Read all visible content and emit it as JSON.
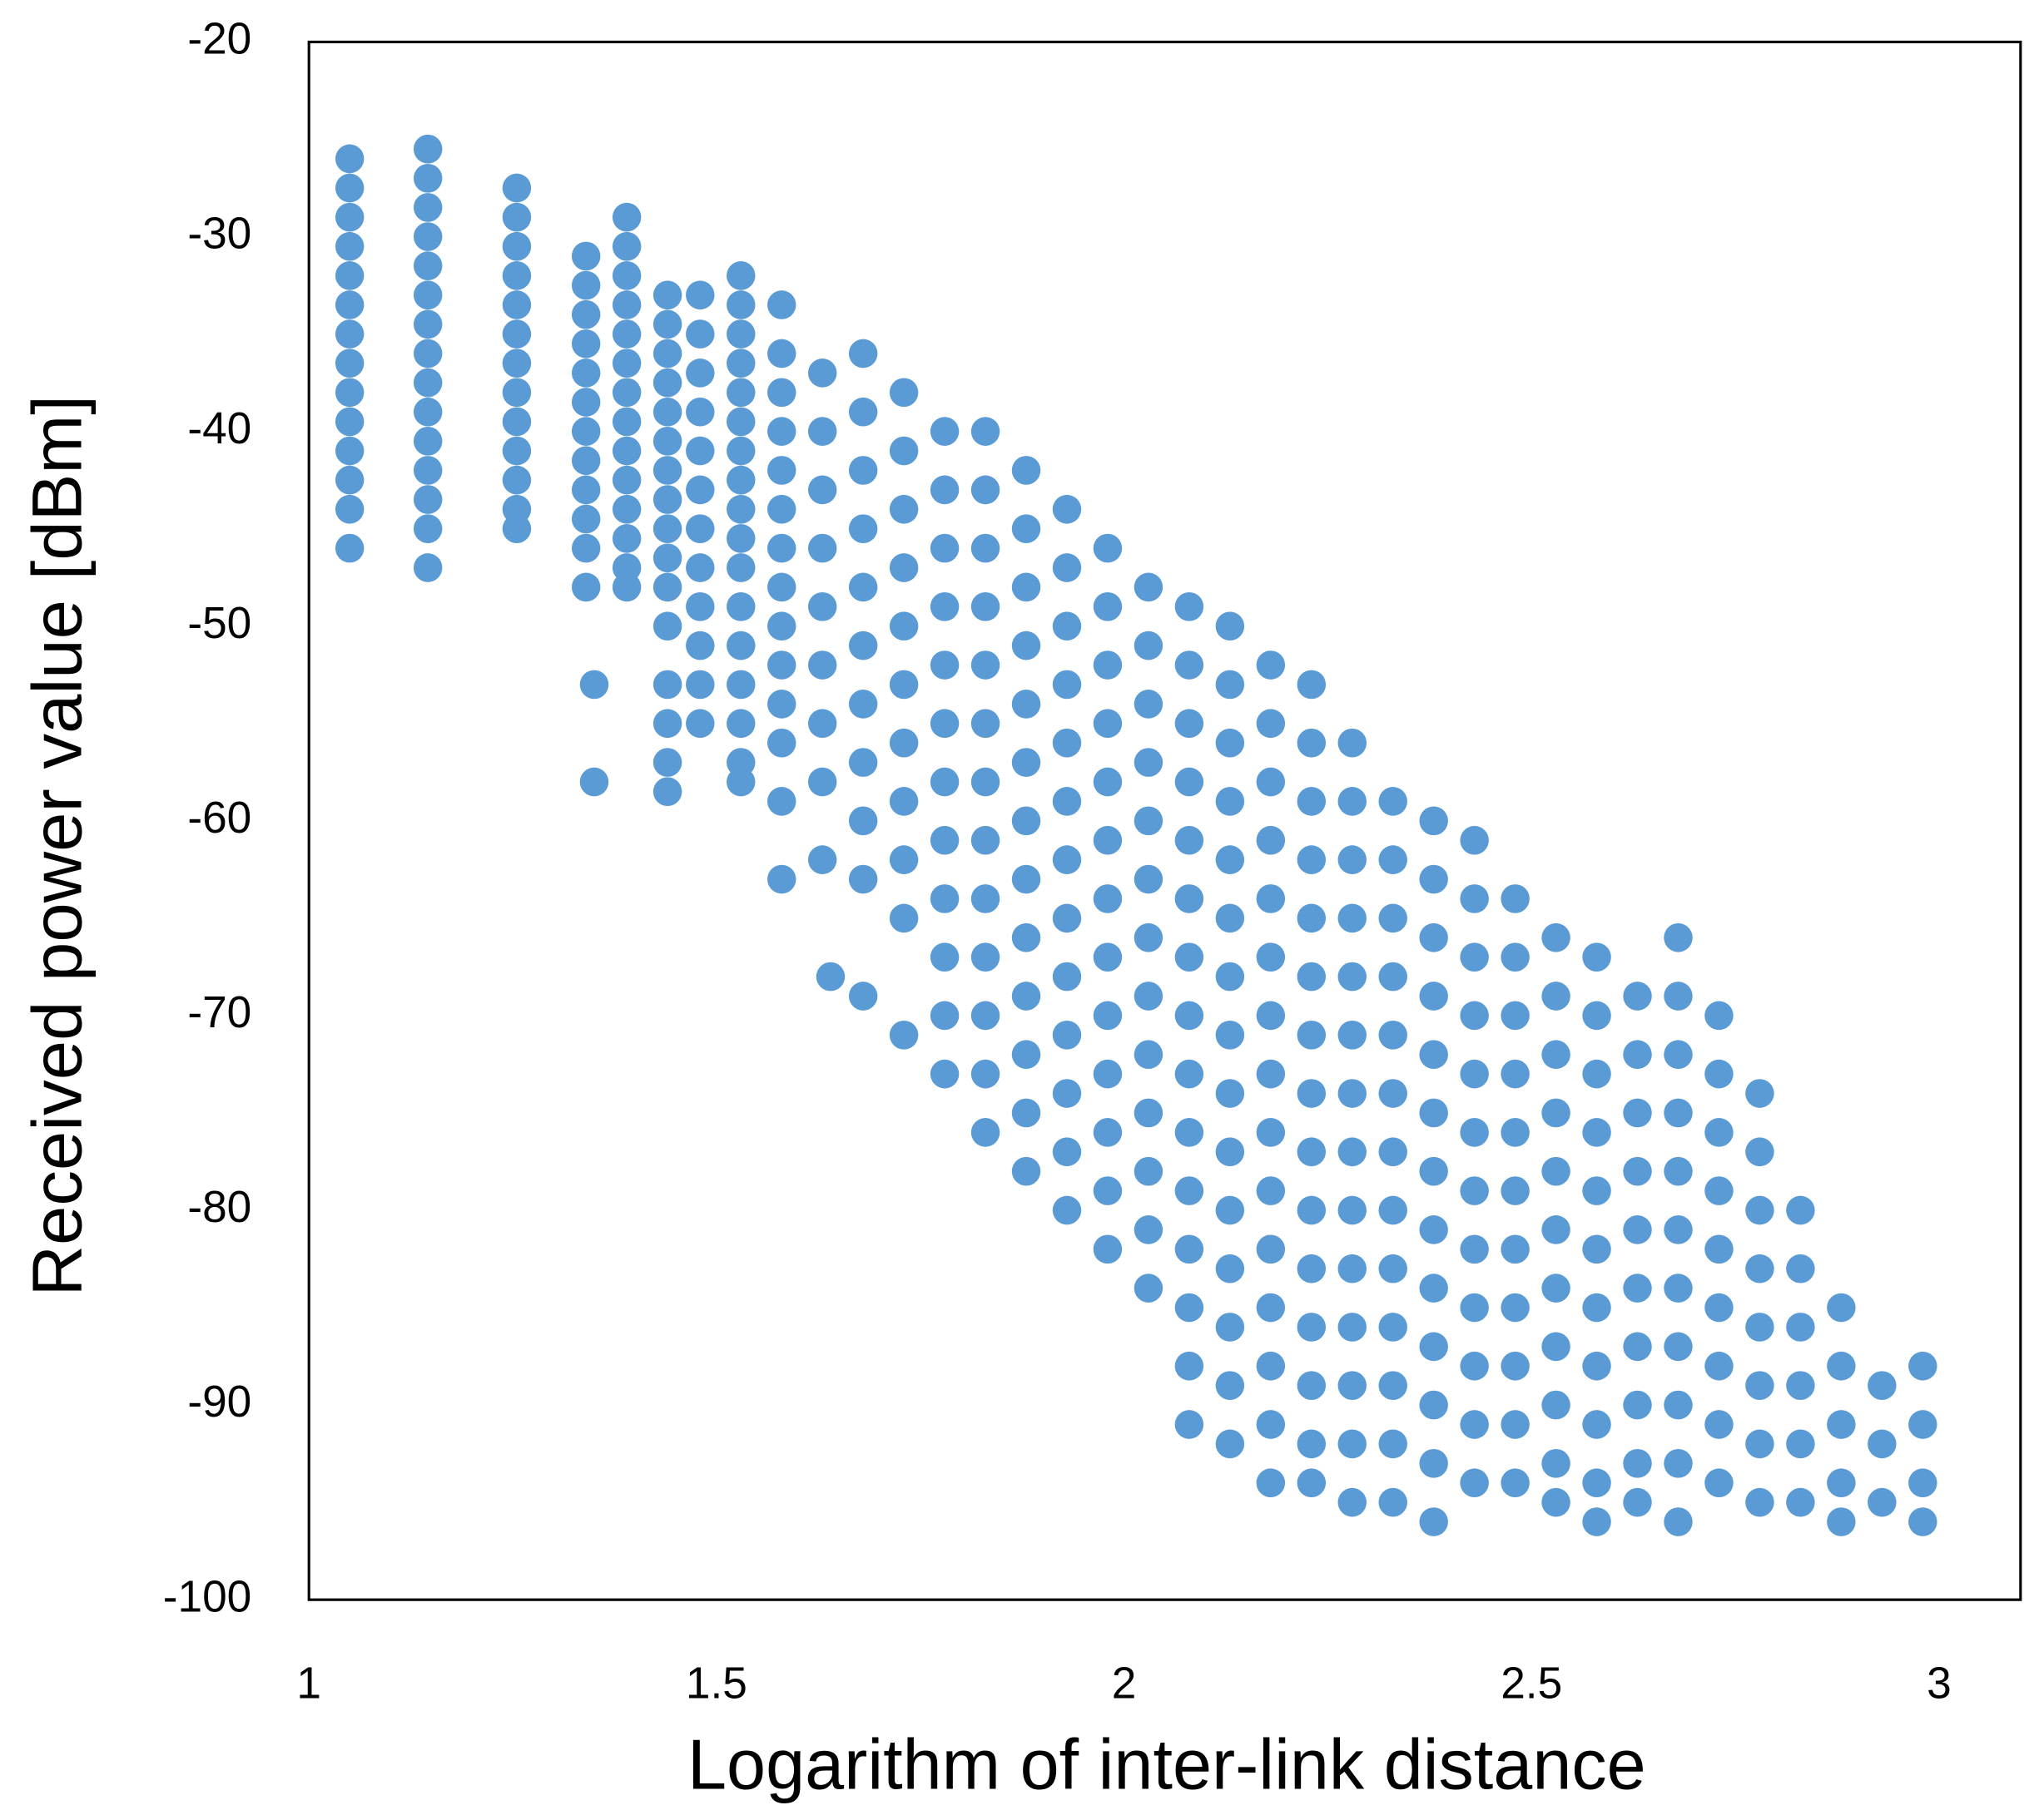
{
  "chart_data": {
    "type": "scatter",
    "xlabel": "Logarithm of inter-link distance",
    "ylabel": "Received power value [dBm]",
    "xlim": [
      1,
      3.1
    ],
    "xticks": [
      1,
      1.5,
      2,
      2.5,
      3
    ],
    "ylim": [
      -100,
      -20
    ],
    "yticks": [
      -100,
      -90,
      -80,
      -70,
      -60,
      -50,
      -40,
      -30,
      -20
    ],
    "grid": false,
    "series": [
      {
        "color": "#5b9bd5",
        "x": [
          1.05,
          1.05,
          1.05,
          1.05,
          1.05,
          1.05,
          1.05,
          1.05,
          1.05,
          1.05,
          1.05,
          1.05,
          1.05,
          1.05,
          1.146,
          1.146,
          1.146,
          1.146,
          1.146,
          1.146,
          1.146,
          1.146,
          1.146,
          1.146,
          1.146,
          1.146,
          1.146,
          1.146,
          1.146,
          1.255,
          1.255,
          1.255,
          1.255,
          1.255,
          1.255,
          1.255,
          1.255,
          1.255,
          1.255,
          1.255,
          1.255,
          1.255,
          1.34,
          1.34,
          1.34,
          1.34,
          1.34,
          1.34,
          1.34,
          1.34,
          1.34,
          1.34,
          1.34,
          1.34,
          1.35,
          1.35,
          1.39,
          1.39,
          1.39,
          1.39,
          1.39,
          1.39,
          1.39,
          1.39,
          1.39,
          1.39,
          1.39,
          1.39,
          1.39,
          1.39,
          1.44,
          1.44,
          1.44,
          1.44,
          1.44,
          1.44,
          1.44,
          1.44,
          1.44,
          1.44,
          1.44,
          1.44,
          1.44,
          1.44,
          1.44,
          1.44,
          1.48,
          1.48,
          1.48,
          1.48,
          1.48,
          1.48,
          1.48,
          1.48,
          1.48,
          1.48,
          1.48,
          1.48,
          1.53,
          1.53,
          1.53,
          1.53,
          1.53,
          1.53,
          1.53,
          1.53,
          1.53,
          1.53,
          1.53,
          1.53,
          1.53,
          1.53,
          1.53,
          1.53,
          1.53,
          1.58,
          1.58,
          1.58,
          1.58,
          1.58,
          1.58,
          1.58,
          1.58,
          1.58,
          1.58,
          1.58,
          1.58,
          1.58,
          1.58,
          1.63,
          1.63,
          1.63,
          1.63,
          1.63,
          1.63,
          1.63,
          1.63,
          1.63,
          1.64,
          1.68,
          1.68,
          1.68,
          1.68,
          1.68,
          1.68,
          1.68,
          1.68,
          1.68,
          1.68,
          1.68,
          1.73,
          1.73,
          1.73,
          1.73,
          1.73,
          1.73,
          1.73,
          1.73,
          1.73,
          1.73,
          1.73,
          1.78,
          1.78,
          1.78,
          1.78,
          1.78,
          1.78,
          1.78,
          1.78,
          1.78,
          1.78,
          1.78,
          1.78,
          1.83,
          1.83,
          1.83,
          1.83,
          1.83,
          1.83,
          1.83,
          1.83,
          1.83,
          1.83,
          1.83,
          1.83,
          1.83,
          1.88,
          1.88,
          1.88,
          1.88,
          1.88,
          1.88,
          1.88,
          1.88,
          1.88,
          1.88,
          1.88,
          1.88,
          1.88,
          1.93,
          1.93,
          1.93,
          1.93,
          1.93,
          1.93,
          1.93,
          1.93,
          1.93,
          1.93,
          1.93,
          1.93,
          1.93,
          1.98,
          1.98,
          1.98,
          1.98,
          1.98,
          1.98,
          1.98,
          1.98,
          1.98,
          1.98,
          1.98,
          1.98,
          1.98,
          2.03,
          2.03,
          2.03,
          2.03,
          2.03,
          2.03,
          2.03,
          2.03,
          2.03,
          2.03,
          2.03,
          2.03,
          2.03,
          2.08,
          2.08,
          2.08,
          2.08,
          2.08,
          2.08,
          2.08,
          2.08,
          2.08,
          2.08,
          2.08,
          2.08,
          2.08,
          2.08,
          2.08,
          2.13,
          2.13,
          2.13,
          2.13,
          2.13,
          2.13,
          2.13,
          2.13,
          2.13,
          2.13,
          2.13,
          2.13,
          2.13,
          2.13,
          2.13,
          2.18,
          2.18,
          2.18,
          2.18,
          2.18,
          2.18,
          2.18,
          2.18,
          2.18,
          2.18,
          2.18,
          2.18,
          2.18,
          2.18,
          2.18,
          2.23,
          2.23,
          2.23,
          2.23,
          2.23,
          2.23,
          2.23,
          2.23,
          2.23,
          2.23,
          2.23,
          2.23,
          2.23,
          2.23,
          2.23,
          2.28,
          2.28,
          2.28,
          2.28,
          2.28,
          2.28,
          2.28,
          2.28,
          2.28,
          2.28,
          2.28,
          2.28,
          2.28,
          2.28,
          2.33,
          2.33,
          2.33,
          2.33,
          2.33,
          2.33,
          2.33,
          2.33,
          2.33,
          2.33,
          2.33,
          2.33,
          2.33,
          2.38,
          2.38,
          2.38,
          2.38,
          2.38,
          2.38,
          2.38,
          2.38,
          2.38,
          2.38,
          2.38,
          2.38,
          2.38,
          2.43,
          2.43,
          2.43,
          2.43,
          2.43,
          2.43,
          2.43,
          2.43,
          2.43,
          2.43,
          2.43,
          2.43,
          2.48,
          2.48,
          2.48,
          2.48,
          2.48,
          2.48,
          2.48,
          2.48,
          2.48,
          2.48,
          2.48,
          2.53,
          2.53,
          2.53,
          2.53,
          2.53,
          2.53,
          2.53,
          2.53,
          2.53,
          2.53,
          2.53,
          2.58,
          2.58,
          2.58,
          2.58,
          2.58,
          2.58,
          2.58,
          2.58,
          2.58,
          2.58,
          2.58,
          2.63,
          2.63,
          2.63,
          2.63,
          2.63,
          2.63,
          2.63,
          2.63,
          2.63,
          2.63,
          2.68,
          2.68,
          2.68,
          2.68,
          2.68,
          2.68,
          2.68,
          2.68,
          2.68,
          2.68,
          2.68,
          2.73,
          2.73,
          2.73,
          2.73,
          2.73,
          2.73,
          2.73,
          2.73,
          2.73,
          2.78,
          2.78,
          2.78,
          2.78,
          2.78,
          2.78,
          2.78,
          2.78,
          2.83,
          2.83,
          2.83,
          2.83,
          2.83,
          2.83,
          2.88,
          2.88,
          2.88,
          2.88,
          2.88,
          2.93,
          2.93,
          2.93,
          2.98,
          2.98,
          2.98,
          2.98
        ],
        "values": [
          -26,
          -27.5,
          -29,
          -30.5,
          -32,
          -33.5,
          -35,
          -36.5,
          -38,
          -39.5,
          -41,
          -42.5,
          -44,
          -46,
          -25.5,
          -27,
          -28.5,
          -30,
          -31.5,
          -33,
          -34.5,
          -36,
          -37.5,
          -39,
          -40.5,
          -42,
          -43.5,
          -45,
          -47,
          -27.5,
          -29,
          -30.5,
          -32,
          -33.5,
          -35,
          -36.5,
          -38,
          -39.5,
          -41,
          -42.5,
          -44,
          -45,
          -31,
          -32.5,
          -34,
          -35.5,
          -37,
          -38.5,
          -40,
          -41.5,
          -43,
          -44.5,
          -46,
          -48,
          -53,
          -58,
          -29,
          -30.5,
          -32,
          -33.5,
          -35,
          -36.5,
          -38,
          -39.5,
          -41,
          -42.5,
          -44,
          -45.5,
          -47,
          -48,
          -33,
          -34.5,
          -36,
          -37.5,
          -39,
          -40.5,
          -42,
          -43.5,
          -45,
          -46.5,
          -48,
          -50,
          -53,
          -55,
          -57,
          -58.5,
          -33,
          -35,
          -37,
          -39,
          -41,
          -43,
          -45,
          -47,
          -49,
          -51,
          -53,
          -55,
          -32,
          -33.5,
          -35,
          -36.5,
          -38,
          -39.5,
          -41,
          -42.5,
          -44,
          -45.5,
          -47,
          -49,
          -51,
          -53,
          -55,
          -57,
          -58,
          -33.5,
          -36,
          -38,
          -40,
          -42,
          -44,
          -46,
          -48,
          -50,
          -52,
          -54,
          -56,
          -59,
          -63,
          -37,
          -40,
          -43,
          -46,
          -49,
          -52,
          -55,
          -58,
          -62,
          -68,
          -36,
          -39,
          -42,
          -45,
          -48,
          -51,
          -54,
          -57,
          -60,
          -63,
          -69,
          -38,
          -41,
          -44,
          -47,
          -50,
          -53,
          -56,
          -59,
          -62,
          -65,
          -71,
          -40,
          -43,
          -46,
          -49,
          -52,
          -55,
          -58,
          -61,
          -64,
          -67,
          -70,
          -73,
          -40,
          -43,
          -46,
          -49,
          -52,
          -55,
          -58,
          -61,
          -64,
          -67,
          -70,
          -73,
          -76,
          -42,
          -45,
          -48,
          -51,
          -54,
          -57,
          -60,
          -63,
          -66,
          -69,
          -72,
          -75,
          -78,
          -44,
          -47,
          -50,
          -53,
          -56,
          -59,
          -62,
          -65,
          -68,
          -71,
          -74,
          -77,
          -80,
          -46,
          -49,
          -52,
          -55,
          -58,
          -61,
          -64,
          -67,
          -70,
          -73,
          -76,
          -79,
          -82,
          -48,
          -51,
          -54,
          -57,
          -60,
          -63,
          -66,
          -69,
          -72,
          -75,
          -78,
          -81,
          -84,
          -49,
          -52,
          -55,
          -58,
          -61,
          -64,
          -67,
          -70,
          -73,
          -76,
          -79,
          -82,
          -85,
          -88,
          -91,
          -50,
          -53,
          -56,
          -59,
          -62,
          -65,
          -68,
          -71,
          -74,
          -77,
          -80,
          -83,
          -86,
          -89,
          -92,
          -52,
          -55,
          -58,
          -61,
          -64,
          -67,
          -70,
          -73,
          -76,
          -79,
          -82,
          -85,
          -88,
          -91,
          -94,
          -53,
          -56,
          -59,
          -62,
          -65,
          -68,
          -71,
          -74,
          -77,
          -80,
          -83,
          -86,
          -89,
          -92,
          -94,
          -56,
          -59,
          -62,
          -65,
          -68,
          -71,
          -74,
          -77,
          -80,
          -83,
          -86,
          -89,
          -92,
          -95,
          -59,
          -62,
          -65,
          -68,
          -71,
          -74,
          -77,
          -80,
          -83,
          -86,
          -89,
          -92,
          -95,
          -60,
          -63,
          -66,
          -69,
          -72,
          -75,
          -78,
          -81,
          -84,
          -87,
          -90,
          -93,
          -96,
          -61,
          -64,
          -67,
          -70,
          -73,
          -76,
          -79,
          -82,
          -85,
          -88,
          -91,
          -94,
          -64,
          -67,
          -70,
          -73,
          -76,
          -79,
          -82,
          -85,
          -88,
          -91,
          -94,
          -66,
          -69,
          -72,
          -75,
          -78,
          -81,
          -84,
          -87,
          -90,
          -93,
          -95,
          -67,
          -70,
          -73,
          -76,
          -79,
          -82,
          -85,
          -88,
          -91,
          -94,
          -96,
          -69,
          -72,
          -75,
          -78,
          -81,
          -84,
          -87,
          -90,
          -93,
          -95,
          -66,
          -69,
          -72,
          -75,
          -78,
          -81,
          -84,
          -87,
          -90,
          -93,
          -96,
          -70,
          -73,
          -76,
          -79,
          -82,
          -85,
          -88,
          -91,
          -94,
          -74,
          -77,
          -80,
          -83,
          -86,
          -89,
          -92,
          -95,
          -80,
          -83,
          -86,
          -89,
          -92,
          -95,
          -85,
          -88,
          -91,
          -94,
          -96,
          -89,
          -92,
          -95,
          -88,
          -91,
          -94,
          -96
        ]
      }
    ]
  }
}
